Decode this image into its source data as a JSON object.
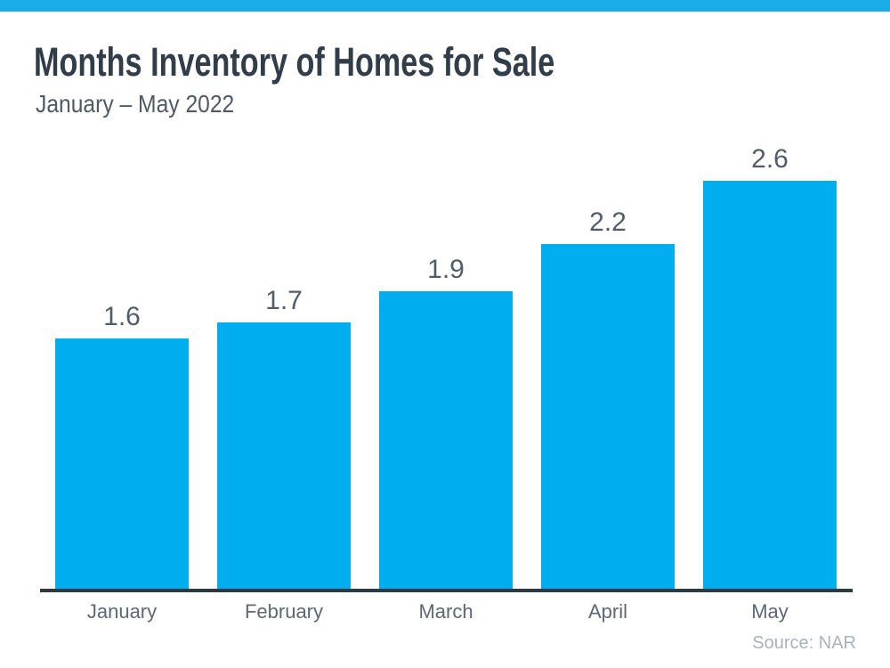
{
  "page": {
    "accent_color": "#1aabe9",
    "background_color": "#ffffff"
  },
  "header": {
    "title": "Months Inventory of Homes for Sale",
    "subtitle": "January – May 2022"
  },
  "chart_data": {
    "type": "bar",
    "title": "Months Inventory of Homes for Sale",
    "subtitle": "January – May 2022",
    "categories": [
      "January",
      "February",
      "March",
      "April",
      "May"
    ],
    "values": [
      1.6,
      1.7,
      1.9,
      2.2,
      2.6
    ],
    "value_labels": [
      "1.6",
      "1.7",
      "1.9",
      "2.2",
      "2.6"
    ],
    "xlabel": "",
    "ylabel": "",
    "ylim": [
      0,
      2.8
    ],
    "grid": false,
    "legend": false,
    "value_labels_shown": true,
    "bar_color": "#00AEEF",
    "value_label_color": "#515d69",
    "category_label_color": "#5d6874",
    "axis_line_color": "#2e3944"
  },
  "footer": {
    "source": "Source: NAR"
  }
}
